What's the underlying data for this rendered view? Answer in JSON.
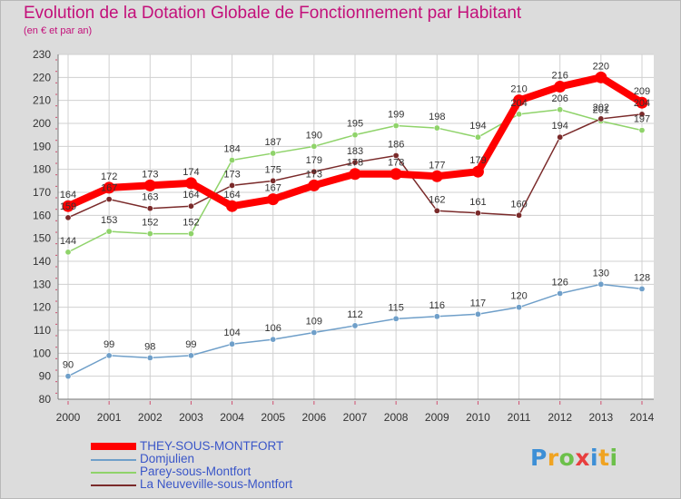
{
  "chart_data": {
    "type": "line",
    "title": "Evolution de la Dotation Globale de Fonctionnement par Habitant",
    "subtitle": "(en € et par an)",
    "xlabel": "",
    "ylabel": "",
    "ylim": [
      80,
      230
    ],
    "yticks": [
      80,
      90,
      100,
      110,
      120,
      130,
      140,
      150,
      160,
      170,
      180,
      190,
      200,
      210,
      220,
      230
    ],
    "categories": [
      "2000",
      "2001",
      "2002",
      "2003",
      "2004",
      "2005",
      "2006",
      "2007",
      "2008",
      "2009",
      "2010",
      "2011",
      "2012",
      "2013",
      "2014"
    ],
    "series": [
      {
        "name": "THEY-SOUS-MONTFORT",
        "color": "#ff0000",
        "values": [
          164,
          172,
          173,
          174,
          164,
          167,
          173,
          178,
          178,
          177,
          179,
          210,
          216,
          220,
          209
        ]
      },
      {
        "name": "Domjulien",
        "color": "#6f9fc9",
        "values": [
          90,
          99,
          98,
          99,
          104,
          106,
          109,
          112,
          115,
          116,
          117,
          120,
          126,
          130,
          128
        ]
      },
      {
        "name": "Parey-sous-Montfort",
        "color": "#8fd36a",
        "values": [
          144,
          153,
          152,
          152,
          184,
          187,
          190,
          195,
          199,
          198,
          194,
          204,
          206,
          201,
          197
        ]
      },
      {
        "name": "La Neuveville-sous-Montfort",
        "color": "#7a2a2a",
        "values": [
          159,
          167,
          163,
          164,
          173,
          175,
          179,
          183,
          186,
          162,
          161,
          160,
          194,
          202,
          204
        ]
      }
    ],
    "data_labels": {
      "THEY-SOUS-MONTFORT": [
        "164",
        "172",
        "173",
        "174",
        "164",
        "167",
        "173",
        "178",
        "178",
        "177",
        "179",
        "210",
        "216",
        "220",
        "209"
      ],
      "Domjulien": [
        "90",
        "99",
        "98",
        "99",
        "104",
        "106",
        "109",
        "112",
        "115",
        "116",
        "117",
        "120",
        "126",
        "130",
        "128"
      ],
      "Parey-sous-Montfort": [
        "144",
        "153",
        "152",
        "152",
        "184",
        "187",
        "190",
        "195",
        "199",
        "198",
        "194",
        "204",
        "206",
        "201",
        "197"
      ],
      "La Neuveville-sous-Montfort": [
        "159",
        "167",
        "163",
        "164",
        "173",
        "175",
        "179",
        "183",
        "186",
        "162",
        "161",
        "160",
        "194",
        "202",
        "204"
      ]
    },
    "legend_position": "bottom-left",
    "grid": true
  },
  "legend": {
    "items": [
      {
        "label": "THEY-SOUS-MONTFORT"
      },
      {
        "label": "Domjulien"
      },
      {
        "label": "Parey-sous-Montfort"
      },
      {
        "label": "La Neuveville-sous-Montfort"
      }
    ]
  },
  "logo": {
    "letters": [
      "P",
      "r",
      "o",
      "x",
      "i",
      "t",
      "i"
    ],
    "colors": [
      "#3d8fd6",
      "#f0a321",
      "#6cc04a",
      "#e83e3e",
      "#3d8fd6",
      "#f0a321",
      "#6cc04a"
    ]
  }
}
